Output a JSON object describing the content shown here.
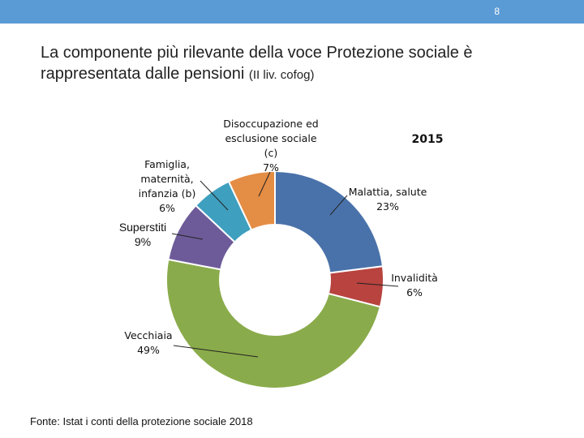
{
  "slide": {
    "page_number": "8",
    "title_main": "La componente più rilevante della voce Protezione sociale è rappresentata dalle pensioni",
    "title_note": "(II liv. cofog)",
    "source": "Fonte: Istat i conti della protezione sociale 2018"
  },
  "colors": {
    "header_bar": "#5b9bd5"
  },
  "chart_data": {
    "type": "pie",
    "variant": "donut",
    "title": "2015",
    "unit": "%",
    "slices": [
      {
        "name": "Malattia, salute",
        "value": 23,
        "label_lines": [
          "Malattia, salute",
          "23%"
        ],
        "color": "#4a72aa"
      },
      {
        "name": "Invalidità",
        "value": 6,
        "label_lines": [
          "Invalidità",
          "6%"
        ],
        "color": "#b8433f"
      },
      {
        "name": "Vecchiaia",
        "value": 49,
        "label_lines": [
          "Vecchiaia",
          "49%"
        ],
        "color": "#8aab4b"
      },
      {
        "name": "Superstiti",
        "value": 9,
        "label_lines": [
          "Superstiti",
          "9%"
        ],
        "color": "#6d5b99"
      },
      {
        "name": "Famiglia, maternità, infanzia (b)",
        "value": 6,
        "label_lines": [
          "Famiglia,",
          "maternità,",
          "infanzia (b)",
          "6%"
        ],
        "color": "#3f9fbe"
      },
      {
        "name": "Disoccupazione ed esclusione sociale (c)",
        "value": 7,
        "label_lines": [
          "Disoccupazione ed",
          "esclusione sociale",
          "(c)",
          "7%"
        ],
        "color": "#e48d44"
      }
    ]
  }
}
